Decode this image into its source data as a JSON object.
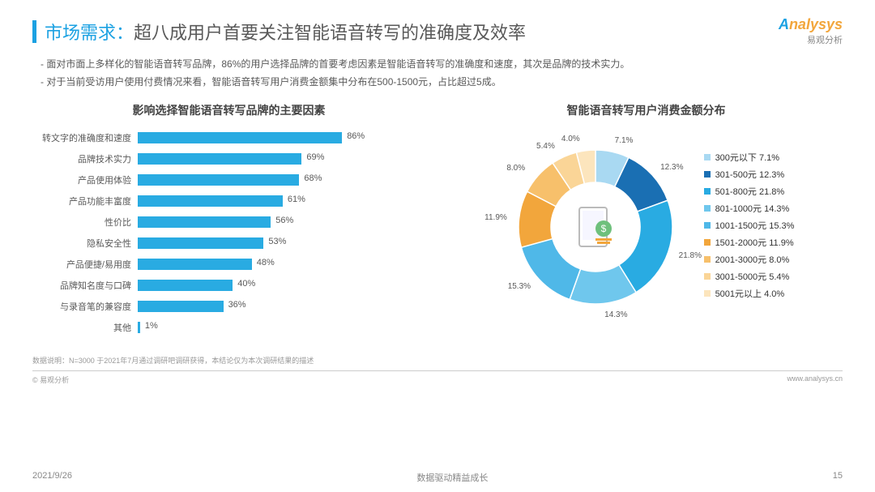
{
  "header": {
    "prefix": "市场需求：",
    "main": "超八成用户首要关注智能语音转写的准确度及效率",
    "logo_top": "nalysys",
    "logo_sub": "易观分析"
  },
  "bullets": [
    "面对市面上多样化的智能语音转写品牌，86%的用户选择品牌的首要考虑因素是智能语音转写的准确度和速度，其次是品牌的技术实力。",
    "对于当前受访用户使用付费情况来看，智能语音转写用户消费金额集中分布在500-1500元，占比超过5成。"
  ],
  "bar_chart": {
    "title": "影响选择智能语音转写品牌的主要因素",
    "max": 100,
    "bar_color": "#29abe2",
    "items": [
      {
        "label": "转文字的准确度和速度",
        "value": 86
      },
      {
        "label": "品牌技术实力",
        "value": 69
      },
      {
        "label": "产品使用体验",
        "value": 68
      },
      {
        "label": "产品功能丰富度",
        "value": 61
      },
      {
        "label": "性价比",
        "value": 56
      },
      {
        "label": "隐私安全性",
        "value": 53
      },
      {
        "label": "产品便捷/易用度",
        "value": 48
      },
      {
        "label": "品牌知名度与口碑",
        "value": 40
      },
      {
        "label": "与录音笔的兼容度",
        "value": 36
      },
      {
        "label": "其他",
        "value": 1
      }
    ]
  },
  "donut": {
    "title": "智能语音转写用户消费金额分布",
    "slices": [
      {
        "label": "300元以下 7.1%",
        "short": "7.1%",
        "value": 7.1,
        "color": "#a9d9f2"
      },
      {
        "label": "301-500元 12.3%",
        "short": "12.3%",
        "value": 12.3,
        "color": "#1a6fb3"
      },
      {
        "label": "501-800元 21.8%",
        "short": "21.8%",
        "value": 21.8,
        "color": "#29abe2"
      },
      {
        "label": "801-1000元 14.3%",
        "short": "14.3%",
        "value": 14.3,
        "color": "#6fc7ed"
      },
      {
        "label": "1001-1500元 15.3%",
        "short": "15.3%",
        "value": 15.3,
        "color": "#4fb8e8"
      },
      {
        "label": "1501-2000元 11.9%",
        "short": "11.9%",
        "value": 11.9,
        "color": "#f2a63c"
      },
      {
        "label": "2001-3000元 8.0%",
        "short": "8.0%",
        "value": 8.0,
        "color": "#f7c06b"
      },
      {
        "label": "3001-5000元 5.4%",
        "short": "5.4%",
        "value": 5.4,
        "color": "#fad597"
      },
      {
        "label": "5001元以上 4.0%",
        "short": "4.0%",
        "value": 4.0,
        "color": "#fce5bd"
      }
    ]
  },
  "note": "数据说明：N=3000  于2021年7月通过调研吧调研获得，本结论仅为本次调研结果的描述",
  "footer": {
    "left": "© 易观分析",
    "right": "www.analysys.cn"
  },
  "meta": {
    "date": "2021/9/26",
    "center": "数据驱动精益成长",
    "page": "15"
  }
}
